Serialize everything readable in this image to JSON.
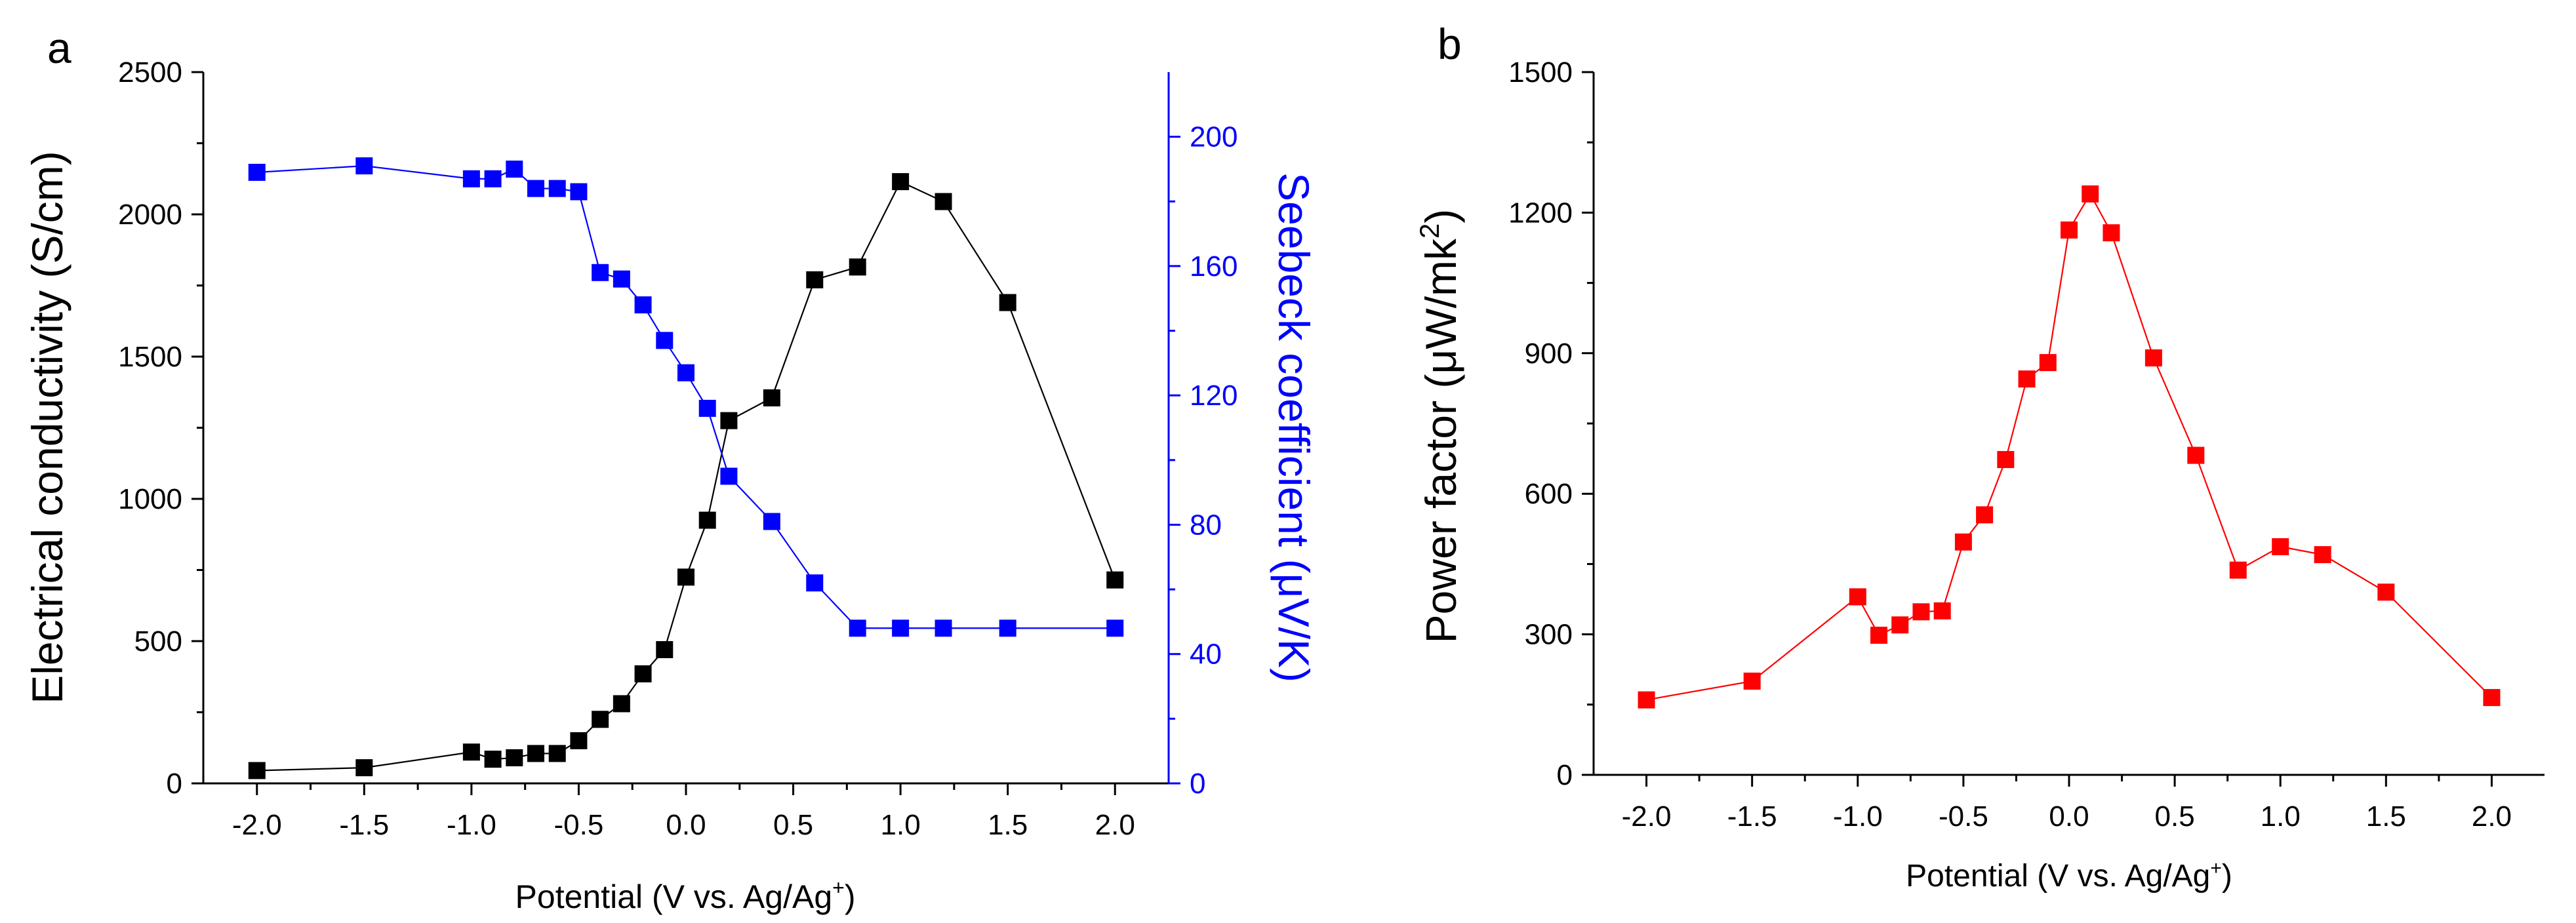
{
  "chart_data": [
    {
      "panel_label": "a",
      "type": "scatter",
      "xlabel": "Potential (V vs. Ag/Ag",
      "xlabel_sup": "+",
      "xlabel_end": ")",
      "x_ticks": [
        "-2.0",
        "-1.5",
        "-1.0",
        "-0.5",
        "0.0",
        "0.5",
        "1.0",
        "1.5",
        "2.0"
      ],
      "xlim": [
        -2.25,
        2.25
      ],
      "ylabel_left": "Electrical conductivity (S/cm)",
      "ylim_left": [
        0,
        2500
      ],
      "y_ticks_left": [
        "0",
        "500",
        "1000",
        "1500",
        "2000",
        "2500"
      ],
      "ylabel_right": "Seebeck coefficient  (μV/K)",
      "ylim_right": [
        0,
        220
      ],
      "y_ticks_right": [
        "0",
        "40",
        "80",
        "120",
        "160",
        "200"
      ],
      "series": [
        {
          "axis": "left",
          "color": "#000000",
          "x": [
            -2.0,
            -1.5,
            -1.0,
            -0.9,
            -0.8,
            -0.7,
            -0.6,
            -0.5,
            -0.4,
            -0.3,
            -0.2,
            -0.1,
            0.0,
            0.1,
            0.2,
            0.4,
            0.6,
            0.8,
            1.0,
            1.2,
            1.5,
            2.0
          ],
          "values": [
            45,
            55,
            110,
            85,
            90,
            105,
            105,
            150,
            225,
            280,
            385,
            470,
            725,
            925,
            1275,
            1355,
            1770,
            1815,
            2115,
            2045,
            1690,
            715
          ]
        },
        {
          "axis": "right",
          "color": "#0000ff",
          "x": [
            -2.0,
            -1.5,
            -1.0,
            -0.9,
            -0.8,
            -0.7,
            -0.6,
            -0.5,
            -0.4,
            -0.3,
            -0.2,
            -0.1,
            0.0,
            0.1,
            0.2,
            0.4,
            0.6,
            0.8,
            1.0,
            1.2,
            1.5,
            2.0
          ],
          "values": [
            189,
            191,
            187,
            187,
            190,
            184,
            184,
            183,
            158,
            156,
            148,
            137,
            127,
            116,
            95,
            81,
            62,
            48,
            48,
            48,
            48,
            48
          ]
        }
      ]
    },
    {
      "panel_label": "b",
      "type": "scatter",
      "xlabel": "Potential (V vs. Ag/Ag",
      "xlabel_sup": "+",
      "xlabel_end": ")",
      "x_ticks": [
        "-2.0",
        "-1.5",
        "-1.0",
        "-0.5",
        "0.0",
        "0.5",
        "1.0",
        "1.5",
        "2.0"
      ],
      "xlim": [
        -2.25,
        2.25
      ],
      "ylabel": "Power factor (μW/mk",
      "ylabel_sup": "2",
      "ylabel_end": ")",
      "ylim": [
        0,
        1500
      ],
      "y_ticks": [
        "0",
        "300",
        "600",
        "900",
        "1200",
        "1500"
      ],
      "series": [
        {
          "color": "#ff0000",
          "x": [
            -2.0,
            -1.5,
            -1.0,
            -0.9,
            -0.8,
            -0.7,
            -0.6,
            -0.5,
            -0.4,
            -0.3,
            -0.2,
            -0.1,
            0.0,
            0.1,
            0.2,
            0.4,
            0.6,
            0.8,
            1.0,
            1.2,
            1.5,
            2.0
          ],
          "values": [
            160,
            200,
            380,
            298,
            320,
            348,
            350,
            497,
            555,
            673,
            845,
            880,
            1163,
            1240,
            1157,
            890,
            682,
            437,
            487,
            470,
            390,
            165
          ]
        }
      ]
    }
  ]
}
